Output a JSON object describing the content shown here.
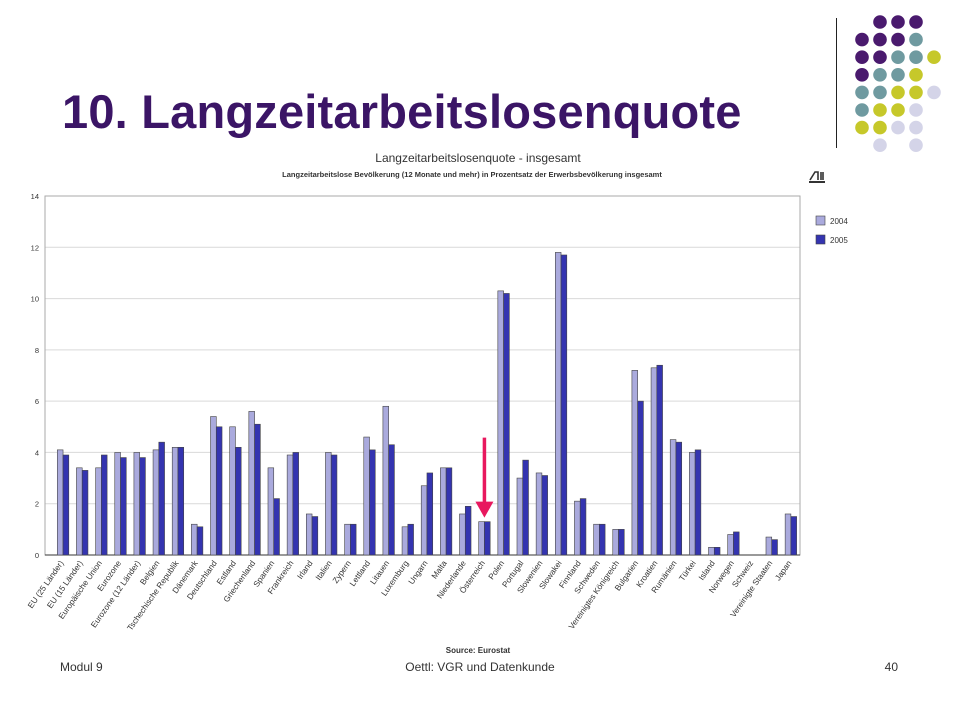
{
  "slide": {
    "title": "10. Langzeitarbeitslosenquote",
    "footer_left": "Modul 9",
    "footer_center": "Oettl: VGR und Datenkunde",
    "footer_right": "40"
  },
  "decor": {
    "dot_colors": [
      "#4a1a6e",
      "#6f9aa0",
      "#c6c82a",
      "#d4d4e8"
    ],
    "bar_color_2004": "#aaaadd",
    "bar_color_2005": "#3434b0",
    "arrow_color": "#e8185e",
    "highlight_category": "Österreich",
    "chart_logo_icon": "eurostat-logo-icon"
  },
  "chart_data": {
    "type": "bar",
    "title": "Langzeitarbeitslosenquote - insgesamt",
    "subtitle": "Langzeitarbeitslose Bevölkerung (12 Monate und mehr) in Prozentsatz der Erwerbsbevölkerung insgesamt",
    "source": "Source: Eurostat",
    "ylim": [
      0,
      14
    ],
    "yticks": [
      0,
      2,
      4,
      6,
      8,
      10,
      12,
      14
    ],
    "grid": true,
    "legend_position": "right",
    "categories": [
      "EU (25 Länder)",
      "EU (15 Länder)",
      "Europäische Union",
      "Eurozone",
      "Eurozone (12 Länder)",
      "Belgien",
      "Tschechische Republik",
      "Dänemark",
      "Deutschland",
      "Estland",
      "Griechenland",
      "Spanien",
      "Frankreich",
      "Irland",
      "Italien",
      "Zypern",
      "Lettland",
      "Litauen",
      "Luxemburg",
      "Ungarn",
      "Malta",
      "Niederlande",
      "Österreich",
      "Polen",
      "Portugal",
      "Slowenien",
      "Slowakei",
      "Finnland",
      "Schweden",
      "Vereinigtes Königreich",
      "Bulgarien",
      "Kroatien",
      "Rumänien",
      "Türkei",
      "Island",
      "Norwegen",
      "Schweiz",
      "Vereinigte Staaten",
      "Japan"
    ],
    "series": [
      {
        "name": "2004",
        "values": [
          4.1,
          3.4,
          3.4,
          4.0,
          4.0,
          4.1,
          4.2,
          1.2,
          5.4,
          5.0,
          5.6,
          3.4,
          3.9,
          1.6,
          4.0,
          1.2,
          4.6,
          5.8,
          1.1,
          2.7,
          3.4,
          1.6,
          1.3,
          10.3,
          3.0,
          3.2,
          11.8,
          2.1,
          1.2,
          1.0,
          7.2,
          7.3,
          4.5,
          4.0,
          0.3,
          0.8,
          0.0,
          0.7,
          1.6
        ]
      },
      {
        "name": "2005",
        "values": [
          3.9,
          3.3,
          3.9,
          3.8,
          3.8,
          4.4,
          4.2,
          1.1,
          5.0,
          4.2,
          5.1,
          2.2,
          4.0,
          1.5,
          3.9,
          1.2,
          4.1,
          4.3,
          1.2,
          3.2,
          3.4,
          1.9,
          1.3,
          10.2,
          3.7,
          3.1,
          11.7,
          2.2,
          1.2,
          1.0,
          6.0,
          7.4,
          4.4,
          4.1,
          0.3,
          0.9,
          0.0,
          0.6,
          1.5
        ]
      }
    ]
  }
}
